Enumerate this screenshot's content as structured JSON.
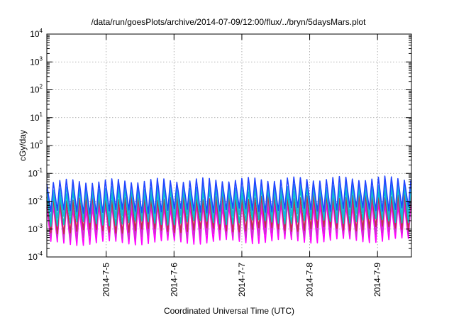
{
  "chart_data": {
    "type": "line",
    "title": "/data/run/goesPlots/archive/2014-07-09/12:00/flux/../bryn/5daysMars.plot",
    "xlabel": "Coordinated Universal Time (UTC)",
    "ylabel": "cGy/day",
    "yscale": "log",
    "ylim": [
      0.0001,
      10000
    ],
    "y_ticks": [
      {
        "base": "10",
        "exp": "-4",
        "value": 0.0001
      },
      {
        "base": "10",
        "exp": "-3",
        "value": 0.001
      },
      {
        "base": "10",
        "exp": "-2",
        "value": 0.01
      },
      {
        "base": "10",
        "exp": "-1",
        "value": 0.1
      },
      {
        "base": "10",
        "exp": "0",
        "value": 1
      },
      {
        "base": "10",
        "exp": "1",
        "value": 10
      },
      {
        "base": "10",
        "exp": "2",
        "value": 100
      },
      {
        "base": "10",
        "exp": "3",
        "value": 1000
      },
      {
        "base": "10",
        "exp": "4",
        "value": 10000
      }
    ],
    "xlim": [
      "2014-07-04 03:00",
      "2014-07-09 12:00"
    ],
    "x_ticks": [
      {
        "label": "2014-7-5",
        "value": "2014-07-05 00:00"
      },
      {
        "label": "2014-7-6",
        "value": "2014-07-06 00:00"
      },
      {
        "label": "2014-7-7",
        "value": "2014-07-07 00:00"
      },
      {
        "label": "2014-7-8",
        "value": "2014-07-08 00:00"
      },
      {
        "label": "2014-7-9",
        "value": "2014-07-09 00:00"
      }
    ],
    "grid": true,
    "oscillation_period_hours": 2.3,
    "series": [
      {
        "color": "#ff00ff",
        "peak": 0.006,
        "trough": 0.0003
      },
      {
        "color": "#cc33cc",
        "peak": 0.009,
        "trough": 0.0005
      },
      {
        "color": "#c0304a",
        "peak": 0.012,
        "trough": 0.0008
      },
      {
        "color": "#00c8c8",
        "peak": 0.02,
        "trough": 0.0015
      },
      {
        "color": "#1fb0e0",
        "peak": 0.03,
        "trough": 0.0025
      },
      {
        "color": "#2244ff",
        "peak": 0.05,
        "trough": 0.004
      }
    ]
  }
}
